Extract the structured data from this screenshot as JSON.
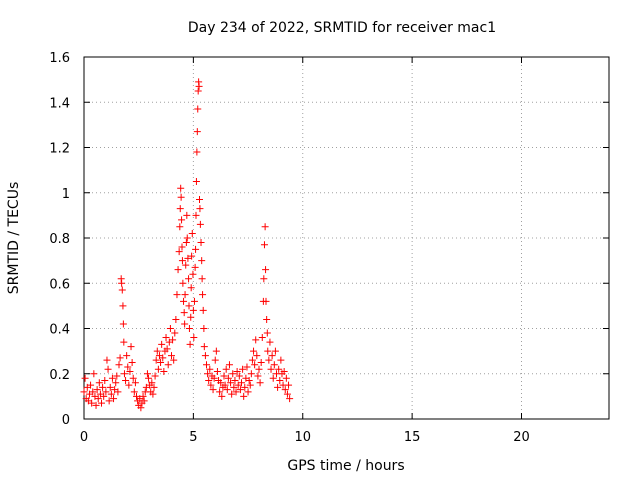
{
  "chart_data": {
    "type": "scatter",
    "title": "Day 234 of 2022, SRMTID for receiver mac1",
    "xlabel": "GPS time / hours",
    "ylabel": "SRMTID / TECUs",
    "xlim": [
      0,
      24
    ],
    "ylim": [
      0,
      1.6
    ],
    "xticks": [
      0,
      5,
      10,
      15,
      20
    ],
    "xtick_labels": [
      "0",
      "5",
      "10",
      "15",
      "20"
    ],
    "yticks": [
      0,
      0.2,
      0.4,
      0.6,
      0.8,
      1.0,
      1.2,
      1.4,
      1.6
    ],
    "ytick_labels": [
      "0",
      "0.2",
      "0.4",
      "0.6",
      "0.8",
      "1",
      "1.2",
      "1.4",
      "1.6"
    ],
    "grid": true,
    "marker": "+",
    "color": "#ff0000",
    "series": [
      {
        "name": "mac1",
        "points": [
          [
            0.0,
            0.12
          ],
          [
            0.05,
            0.18
          ],
          [
            0.1,
            0.09
          ],
          [
            0.15,
            0.14
          ],
          [
            0.2,
            0.08
          ],
          [
            0.25,
            0.11
          ],
          [
            0.3,
            0.15
          ],
          [
            0.35,
            0.07
          ],
          [
            0.4,
            0.12
          ],
          [
            0.45,
            0.2
          ],
          [
            0.5,
            0.1
          ],
          [
            0.55,
            0.06
          ],
          [
            0.6,
            0.13
          ],
          [
            0.65,
            0.09
          ],
          [
            0.7,
            0.16
          ],
          [
            0.75,
            0.11
          ],
          [
            0.8,
            0.07
          ],
          [
            0.85,
            0.14
          ],
          [
            0.9,
            0.1
          ],
          [
            0.95,
            0.17
          ],
          [
            1.0,
            0.12
          ],
          [
            1.05,
            0.26
          ],
          [
            1.1,
            0.22
          ],
          [
            1.15,
            0.08
          ],
          [
            1.2,
            0.14
          ],
          [
            1.25,
            0.11
          ],
          [
            1.3,
            0.18
          ],
          [
            1.35,
            0.09
          ],
          [
            1.4,
            0.13
          ],
          [
            1.45,
            0.16
          ],
          [
            1.5,
            0.19
          ],
          [
            1.55,
            0.12
          ],
          [
            1.6,
            0.24
          ],
          [
            1.65,
            0.27
          ],
          [
            1.7,
            0.62
          ],
          [
            1.72,
            0.6
          ],
          [
            1.75,
            0.57
          ],
          [
            1.78,
            0.5
          ],
          [
            1.8,
            0.42
          ],
          [
            1.82,
            0.34
          ],
          [
            1.85,
            0.2
          ],
          [
            1.9,
            0.17
          ],
          [
            1.95,
            0.28
          ],
          [
            2.0,
            0.23
          ],
          [
            2.05,
            0.15
          ],
          [
            2.1,
            0.21
          ],
          [
            2.15,
            0.32
          ],
          [
            2.2,
            0.25
          ],
          [
            2.25,
            0.18
          ],
          [
            2.3,
            0.12
          ],
          [
            2.35,
            0.16
          ],
          [
            2.4,
            0.1
          ],
          [
            2.45,
            0.08
          ],
          [
            2.5,
            0.06
          ],
          [
            2.55,
            0.09
          ],
          [
            2.6,
            0.05
          ],
          [
            2.65,
            0.07
          ],
          [
            2.7,
            0.1
          ],
          [
            2.75,
            0.08
          ],
          [
            2.8,
            0.12
          ],
          [
            2.85,
            0.14
          ],
          [
            2.9,
            0.2
          ],
          [
            2.95,
            0.18
          ],
          [
            3.0,
            0.15
          ],
          [
            3.05,
            0.12
          ],
          [
            3.1,
            0.16
          ],
          [
            3.15,
            0.11
          ],
          [
            3.2,
            0.14
          ],
          [
            3.25,
            0.19
          ],
          [
            3.3,
            0.26
          ],
          [
            3.35,
            0.3
          ],
          [
            3.4,
            0.22
          ],
          [
            3.45,
            0.28
          ],
          [
            3.5,
            0.25
          ],
          [
            3.55,
            0.33
          ],
          [
            3.6,
            0.27
          ],
          [
            3.65,
            0.21
          ],
          [
            3.7,
            0.3
          ],
          [
            3.75,
            0.36
          ],
          [
            3.8,
            0.31
          ],
          [
            3.85,
            0.24
          ],
          [
            3.9,
            0.34
          ],
          [
            3.95,
            0.4
          ],
          [
            4.0,
            0.28
          ],
          [
            4.05,
            0.35
          ],
          [
            4.1,
            0.26
          ],
          [
            4.15,
            0.38
          ],
          [
            4.2,
            0.44
          ],
          [
            4.25,
            0.55
          ],
          [
            4.3,
            0.66
          ],
          [
            4.35,
            0.74
          ],
          [
            4.38,
            0.85
          ],
          [
            4.4,
            0.93
          ],
          [
            4.42,
            1.02
          ],
          [
            4.44,
            0.98
          ],
          [
            4.46,
            0.88
          ],
          [
            4.48,
            0.76
          ],
          [
            4.5,
            0.7
          ],
          [
            4.52,
            0.6
          ],
          [
            4.55,
            0.52
          ],
          [
            4.58,
            0.47
          ],
          [
            4.6,
            0.42
          ],
          [
            4.62,
            0.55
          ],
          [
            4.65,
            0.68
          ],
          [
            4.68,
            0.78
          ],
          [
            4.7,
            0.9
          ],
          [
            4.72,
            0.8
          ],
          [
            4.75,
            0.71
          ],
          [
            4.78,
            0.62
          ],
          [
            4.8,
            0.5
          ],
          [
            4.82,
            0.4
          ],
          [
            4.85,
            0.33
          ],
          [
            4.88,
            0.45
          ],
          [
            4.9,
            0.58
          ],
          [
            4.92,
            0.72
          ],
          [
            4.95,
            0.82
          ],
          [
            4.98,
            0.64
          ],
          [
            5.0,
            0.48
          ],
          [
            5.02,
            0.36
          ],
          [
            5.05,
            0.52
          ],
          [
            5.08,
            0.67
          ],
          [
            5.1,
            0.75
          ],
          [
            5.12,
            0.9
          ],
          [
            5.14,
            1.05
          ],
          [
            5.16,
            1.18
          ],
          [
            5.18,
            1.27
          ],
          [
            5.2,
            1.37
          ],
          [
            5.22,
            1.45
          ],
          [
            5.24,
            1.49
          ],
          [
            5.26,
            1.47
          ],
          [
            5.28,
            0.97
          ],
          [
            5.3,
            0.93
          ],
          [
            5.32,
            0.86
          ],
          [
            5.35,
            0.78
          ],
          [
            5.38,
            0.7
          ],
          [
            5.4,
            0.62
          ],
          [
            5.42,
            0.55
          ],
          [
            5.45,
            0.48
          ],
          [
            5.48,
            0.4
          ],
          [
            5.5,
            0.32
          ],
          [
            5.55,
            0.28
          ],
          [
            5.6,
            0.24
          ],
          [
            5.65,
            0.2
          ],
          [
            5.7,
            0.17
          ],
          [
            5.75,
            0.22
          ],
          [
            5.8,
            0.15
          ],
          [
            5.85,
            0.19
          ],
          [
            5.9,
            0.13
          ],
          [
            5.95,
            0.18
          ],
          [
            6.0,
            0.26
          ],
          [
            6.05,
            0.3
          ],
          [
            6.1,
            0.21
          ],
          [
            6.15,
            0.17
          ],
          [
            6.2,
            0.12
          ],
          [
            6.25,
            0.16
          ],
          [
            6.3,
            0.1
          ],
          [
            6.35,
            0.14
          ],
          [
            6.4,
            0.19
          ],
          [
            6.45,
            0.15
          ],
          [
            6.5,
            0.22
          ],
          [
            6.55,
            0.13
          ],
          [
            6.6,
            0.18
          ],
          [
            6.65,
            0.24
          ],
          [
            6.7,
            0.16
          ],
          [
            6.75,
            0.11
          ],
          [
            6.8,
            0.2
          ],
          [
            6.85,
            0.14
          ],
          [
            6.9,
            0.17
          ],
          [
            6.95,
            0.12
          ],
          [
            7.0,
            0.21
          ],
          [
            7.05,
            0.15
          ],
          [
            7.1,
            0.19
          ],
          [
            7.15,
            0.13
          ],
          [
            7.2,
            0.16
          ],
          [
            7.25,
            0.22
          ],
          [
            7.3,
            0.1
          ],
          [
            7.35,
            0.14
          ],
          [
            7.4,
            0.18
          ],
          [
            7.45,
            0.23
          ],
          [
            7.5,
            0.12
          ],
          [
            7.55,
            0.17
          ],
          [
            7.6,
            0.15
          ],
          [
            7.65,
            0.2
          ],
          [
            7.7,
            0.26
          ],
          [
            7.75,
            0.3
          ],
          [
            7.8,
            0.24
          ],
          [
            7.85,
            0.35
          ],
          [
            7.9,
            0.28
          ],
          [
            7.95,
            0.19
          ],
          [
            8.0,
            0.22
          ],
          [
            8.05,
            0.16
          ],
          [
            8.1,
            0.25
          ],
          [
            8.15,
            0.36
          ],
          [
            8.2,
            0.52
          ],
          [
            8.22,
            0.62
          ],
          [
            8.25,
            0.77
          ],
          [
            8.28,
            0.85
          ],
          [
            8.3,
            0.66
          ],
          [
            8.32,
            0.52
          ],
          [
            8.35,
            0.44
          ],
          [
            8.38,
            0.38
          ],
          [
            8.4,
            0.3
          ],
          [
            8.45,
            0.26
          ],
          [
            8.5,
            0.34
          ],
          [
            8.55,
            0.22
          ],
          [
            8.6,
            0.28
          ],
          [
            8.65,
            0.18
          ],
          [
            8.7,
            0.24
          ],
          [
            8.75,
            0.3
          ],
          [
            8.8,
            0.2
          ],
          [
            8.85,
            0.14
          ],
          [
            8.9,
            0.22
          ],
          [
            8.95,
            0.17
          ],
          [
            9.0,
            0.26
          ],
          [
            9.05,
            0.2
          ],
          [
            9.1,
            0.15
          ],
          [
            9.15,
            0.21
          ],
          [
            9.2,
            0.13
          ],
          [
            9.25,
            0.18
          ],
          [
            9.3,
            0.11
          ],
          [
            9.35,
            0.15
          ],
          [
            9.4,
            0.09
          ]
        ]
      }
    ]
  }
}
